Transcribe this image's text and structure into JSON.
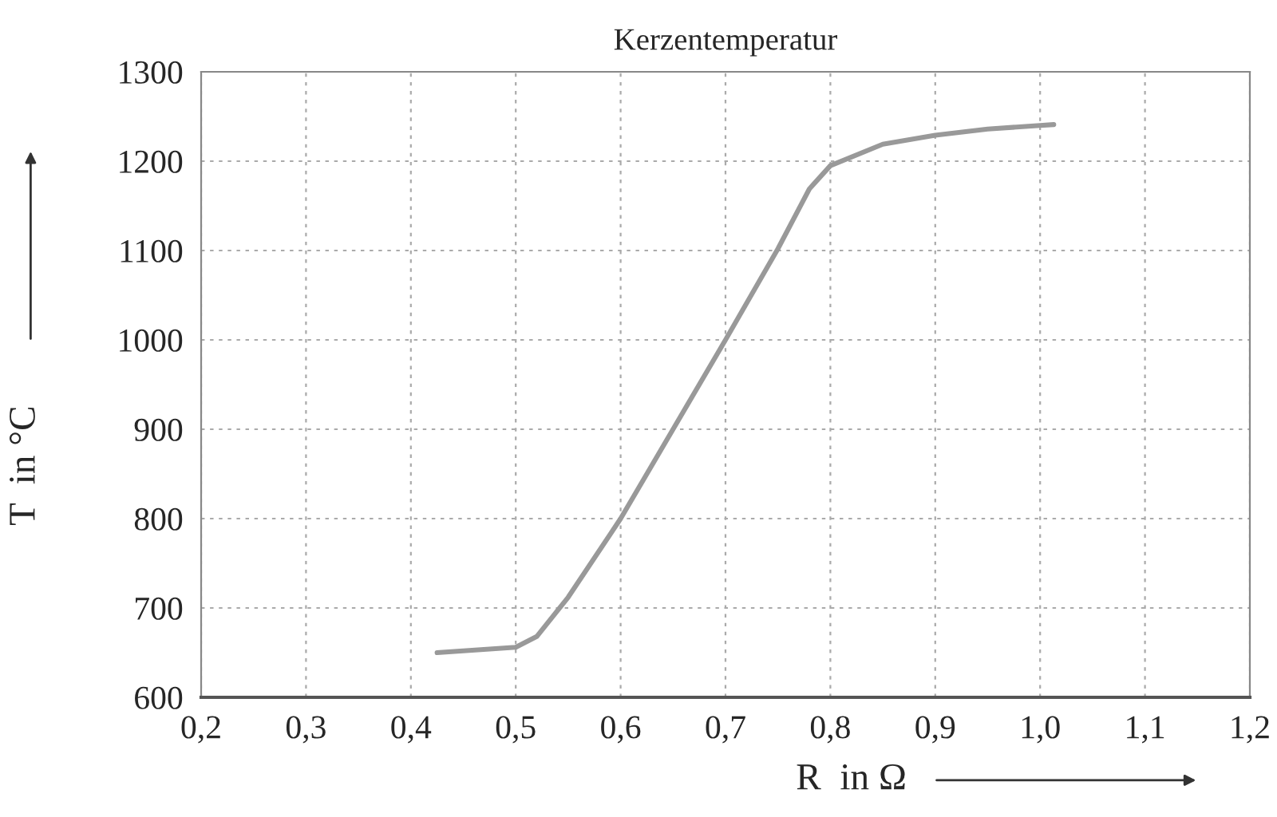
{
  "chart_data": {
    "type": "line",
    "title": "Kerzentemperatur",
    "xlabel": "R  in Ω",
    "ylabel": "T  in °C",
    "series": [
      {
        "color": "#999999",
        "x": [
          0.425,
          0.5,
          0.52,
          0.55,
          0.6,
          0.65,
          0.7,
          0.75,
          0.78,
          0.8,
          0.85,
          0.9,
          0.95,
          1.0,
          1.013
        ],
        "values": [
          650,
          656,
          668,
          712,
          800,
          900,
          1000,
          1102,
          1169,
          1195,
          1219,
          1229,
          1236,
          1240,
          1241
        ]
      }
    ],
    "xlim": [
      0.2,
      1.2
    ],
    "ylim": [
      600,
      1300
    ],
    "xticks": [
      {
        "value": 0.2,
        "label": "0,2"
      },
      {
        "value": 0.3,
        "label": "0,3"
      },
      {
        "value": 0.4,
        "label": "0,4"
      },
      {
        "value": 0.5,
        "label": "0,5"
      },
      {
        "value": 0.6,
        "label": "0,6"
      },
      {
        "value": 0.7,
        "label": "0,7"
      },
      {
        "value": 0.8,
        "label": "0,8"
      },
      {
        "value": 0.9,
        "label": "0,9"
      },
      {
        "value": 1.0,
        "label": "1,0"
      },
      {
        "value": 1.1,
        "label": "1,1"
      },
      {
        "value": 1.2,
        "label": "1,2"
      }
    ],
    "yticks": [
      600,
      700,
      800,
      900,
      1000,
      1100,
      1200,
      1300
    ],
    "grid": true,
    "marker": "none",
    "line_style": "solid"
  }
}
